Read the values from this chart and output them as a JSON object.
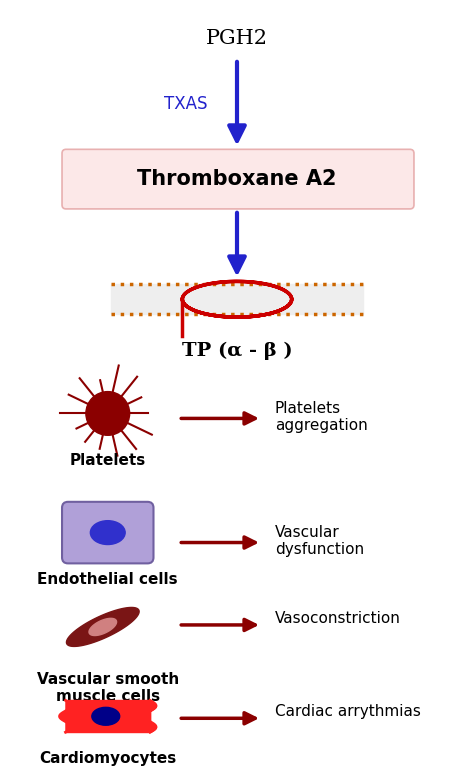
{
  "bg_color": "#ffffff",
  "title_text": "PGH2",
  "txas_label": "TXAS",
  "thromboxane_label": "Thromboxane A2",
  "tp_label": "TP (α - β )",
  "cell_types": [
    "Platelets",
    "Endothelial cells",
    "Vascular smooth\nmuscle cells",
    "Cardiomyocytes"
  ],
  "effects": [
    "Platelets\naggregation",
    "Vascular\ndysfunction",
    "Vasoconstriction",
    "Cardiac arrythmias"
  ],
  "arrow_color_blue": "#2222cc",
  "arrow_color_red": "#8b0000",
  "thromboxane_box_color": "#fce8e8",
  "thromboxane_border_color": "#e8b0b0",
  "membrane_dot_color": "#cc6600",
  "membrane_helix_color": "#cc0000",
  "platelet_color": "#8b0000",
  "endothelial_fill": "#b0a0d8",
  "endothelial_border": "#7060a0",
  "endothelial_nucleus": "#3030cc",
  "vsmc_color": "#7a1515",
  "vsmc_nucleus": "#d08080",
  "cardiomyocyte_color": "#ff2222",
  "cardiomyocyte_nucleus": "#000088",
  "figsize": [
    4.74,
    7.71
  ],
  "dpi": 100
}
